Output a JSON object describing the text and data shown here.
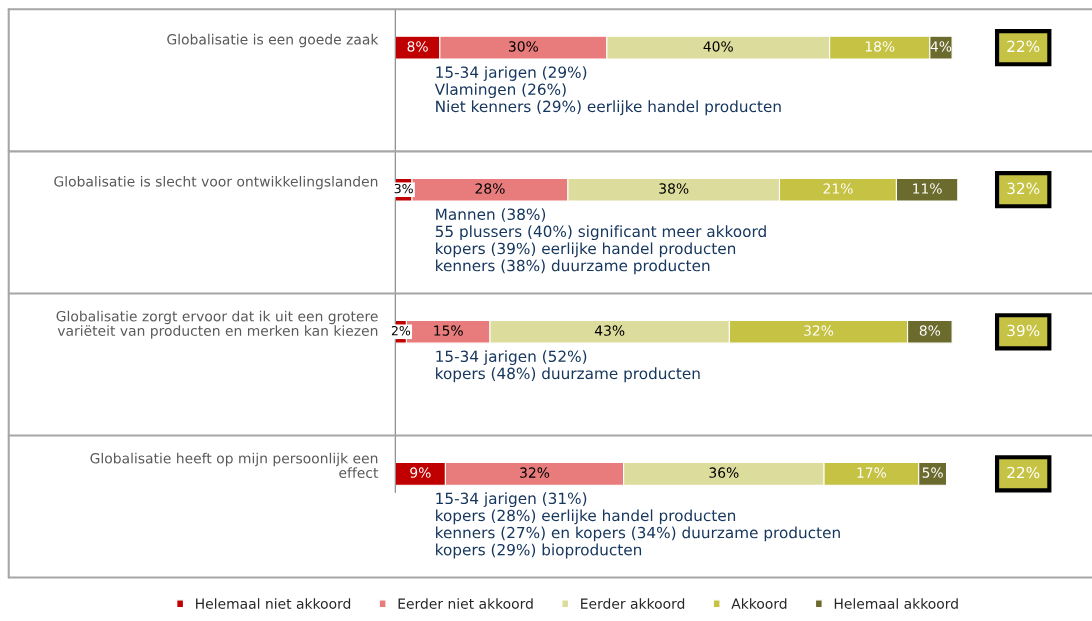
{
  "chart_data": {
    "type": "bar",
    "orientation": "horizontal",
    "stacked": true,
    "legend": "bottom",
    "categories": [
      "Globalisatie is een goede zaak",
      "Globalisatie is slecht voor ontwikkelingslanden",
      "Globalisatie zorgt ervoor dat ik uit een grotere\nvariëteit van producten en merken kan kiezen",
      "Globalisatie heeft op mijn persoonlijk een\neffect"
    ],
    "series": [
      {
        "name": "Helemaal niet akkoord",
        "color": "#c00000",
        "values": [
          8,
          3,
          2,
          9
        ],
        "value_labels": [
          "8%",
          "3%",
          "2%",
          "9%"
        ]
      },
      {
        "name": "Eerder niet akkoord",
        "color": "#e87c7c",
        "values": [
          30,
          28,
          15,
          32
        ],
        "value_labels": [
          "30%",
          "28%",
          "15%",
          "32%"
        ]
      },
      {
        "name": "Eerder akkoord",
        "color": "#dcdc9c",
        "values": [
          40,
          38,
          43,
          36
        ],
        "value_labels": [
          "40%",
          "38%",
          "43%",
          "36%"
        ]
      },
      {
        "name": "Akkoord",
        "color": "#c5c244",
        "values": [
          18,
          21,
          32,
          17
        ],
        "value_labels": [
          "18%",
          "21%",
          "32%",
          "17%"
        ]
      },
      {
        "name": "Helemaal akkoord",
        "color": "#6b6b2e",
        "values": [
          4,
          11,
          8,
          5
        ],
        "value_labels": [
          "4%",
          "11%",
          "8%",
          "5%"
        ]
      }
    ],
    "annotations": [
      "22%",
      "32%",
      "39%",
      "22%",
      "15-34 jarigen (29%)\nVlamingen (26%)\nNiet kenners (29%) eerlijke handel producten",
      "Mannen (38%)\n55 plussers (40%) significant meer akkoord\nkopers (39%) eerlijke handel producten\nkenners (38%) duurzame producten",
      "15-34 jarigen (52%)\nkopers (48%) duurzame producten",
      "15-34 jarigen (31%)\nkopers (28%) eerlijke handel producten\nkenners (27%) en kopers (34%) duurzame producten\nkopers (29%) bioproducten"
    ]
  }
}
